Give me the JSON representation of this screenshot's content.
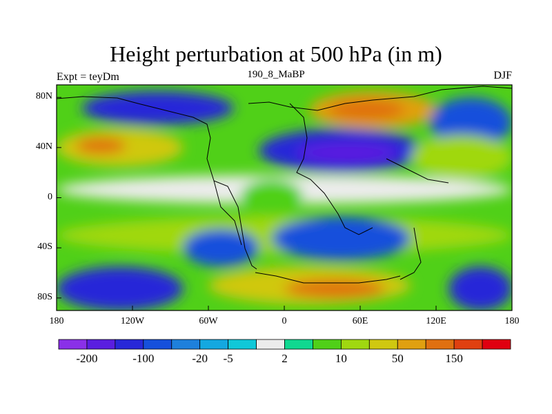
{
  "chart_data": {
    "type": "heatmap",
    "title": "Height perturbation at 500 hPa (in m)",
    "left_string": "Expt = teyDm",
    "center_string": "190_8_MaBP",
    "right_string": "DJF",
    "x_ticks": [
      "180",
      "120W",
      "60W",
      "0",
      "60E",
      "120E",
      "180"
    ],
    "y_ticks": [
      "80N",
      "40N",
      "0",
      "40S",
      "80S"
    ],
    "lon_range": [
      -180,
      180
    ],
    "lat_range": [
      -90,
      90
    ],
    "colorbar": {
      "labels": [
        "-200",
        "-100",
        "-20",
        "-5",
        "2",
        "10",
        "50",
        "150"
      ],
      "colors": [
        "#8a30e8",
        "#5a1ee0",
        "#2828d8",
        "#1650dc",
        "#1e80dc",
        "#14a8e0",
        "#10c8d8",
        "#ececec",
        "#10d890",
        "#50d018",
        "#a0d810",
        "#d0c810",
        "#e0a010",
        "#e07010",
        "#e04010",
        "#e00010"
      ]
    },
    "regions": [
      {
        "name": "nh-band-orange",
        "lon": [
          -180,
          -80
        ],
        "lat": [
          25,
          55
        ],
        "level": 11
      },
      {
        "name": "nh-band-core",
        "lon": [
          -165,
          -125
        ],
        "lat": [
          35,
          48
        ],
        "level": 13
      },
      {
        "name": "arctic-low",
        "lon": [
          -160,
          -40
        ],
        "lat": [
          58,
          85
        ],
        "level": 2
      },
      {
        "name": "asia-high",
        "lon": [
          20,
          120
        ],
        "lat": [
          55,
          85
        ],
        "level": 12
      },
      {
        "name": "asia-high-core",
        "lon": [
          35,
          95
        ],
        "lat": [
          62,
          78
        ],
        "level": 13
      },
      {
        "name": "eurasia-low",
        "lon": [
          -20,
          110
        ],
        "lat": [
          20,
          55
        ],
        "level": 2
      },
      {
        "name": "eurasia-low-core",
        "lon": [
          10,
          90
        ],
        "lat": [
          28,
          44
        ],
        "level": 1
      },
      {
        "name": "pacific-low",
        "lon": [
          115,
          180
        ],
        "lat": [
          40,
          80
        ],
        "level": 3
      },
      {
        "name": "pacific-green",
        "lon": [
          100,
          180
        ],
        "lat": [
          15,
          50
        ],
        "level": 10
      },
      {
        "name": "tropics-white",
        "lon": [
          -180,
          180
        ],
        "lat": [
          -5,
          18
        ],
        "level": 7
      },
      {
        "name": "africa-green",
        "lon": [
          -35,
          15
        ],
        "lat": [
          -15,
          15
        ],
        "level": 9
      },
      {
        "name": "sh-green",
        "lon": [
          -180,
          180
        ],
        "lat": [
          -45,
          -15
        ],
        "level": 10
      },
      {
        "name": "indian-low",
        "lon": [
          -10,
          100
        ],
        "lat": [
          -50,
          -15
        ],
        "level": 3
      },
      {
        "name": "sh-high",
        "lon": [
          -60,
          100
        ],
        "lat": [
          -85,
          -55
        ],
        "level": 11
      },
      {
        "name": "sh-high-core",
        "lon": [
          0,
          80
        ],
        "lat": [
          -80,
          -65
        ],
        "level": 13
      },
      {
        "name": "sh-low-west",
        "lon": [
          -180,
          -80
        ],
        "lat": [
          -90,
          -55
        ],
        "level": 2
      },
      {
        "name": "sh-low-east",
        "lon": [
          130,
          180
        ],
        "lat": [
          -90,
          -55
        ],
        "level": 2
      },
      {
        "name": "south-atl-low",
        "lon": [
          -80,
          -20
        ],
        "lat": [
          -55,
          -25
        ],
        "level": 3
      }
    ]
  }
}
